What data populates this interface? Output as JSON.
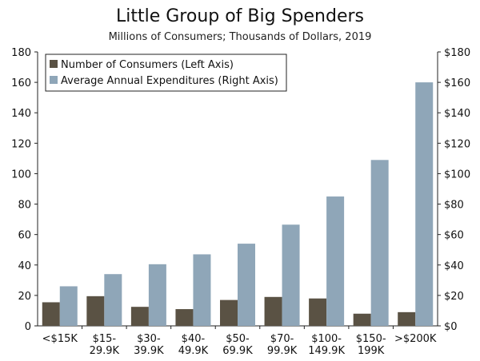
{
  "chart_data": {
    "type": "bar",
    "title": "Little Group of Big Spenders",
    "subtitle": "Millions of Consumers; Thousands of Dollars, 2019",
    "categories": [
      [
        "<$15K"
      ],
      [
        "$15-",
        "29.9K"
      ],
      [
        "$30-",
        "39.9K"
      ],
      [
        "$40-",
        "49.9K"
      ],
      [
        "$50-",
        "69.9K"
      ],
      [
        "$70-",
        "99.9K"
      ],
      [
        "$100-",
        "149.9K"
      ],
      [
        "$150-",
        "199K"
      ],
      [
        ">$200K"
      ]
    ],
    "series": [
      {
        "name": "Number of Consumers (Left Axis)",
        "axis": "left",
        "color": "#5a5244",
        "values": [
          15.5,
          19.5,
          12.5,
          11,
          17,
          19,
          18,
          8,
          9
        ]
      },
      {
        "name": "Average Annual Expenditures (Right Axis)",
        "axis": "right",
        "color": "#8fa6b8",
        "values": [
          26,
          34,
          40.5,
          47,
          54,
          66.5,
          85,
          109,
          160
        ]
      }
    ],
    "left_axis": {
      "min": 0,
      "max": 180,
      "ticks": [
        "0",
        "20",
        "40",
        "60",
        "80",
        "100",
        "120",
        "140",
        "160",
        "180"
      ]
    },
    "right_axis": {
      "min": 0,
      "max": 180,
      "ticks": [
        "$0",
        "$20",
        "$40",
        "$60",
        "$80",
        "$100",
        "$120",
        "$140",
        "$160",
        "$180"
      ]
    },
    "legend_position": "top-left",
    "grid": false
  }
}
